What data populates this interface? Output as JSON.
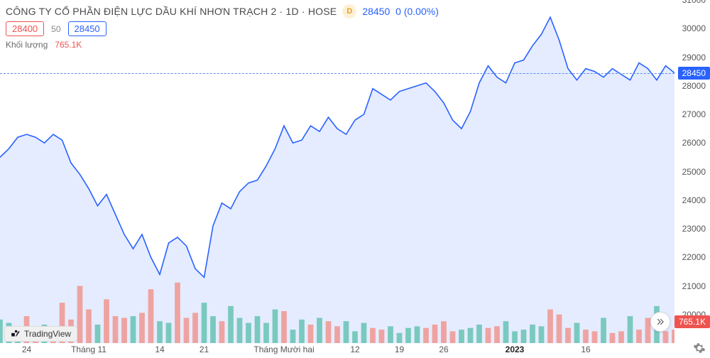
{
  "header": {
    "title": "CÔNG TY CỔ PHẦN ĐIỆN LỰC DẦU KHÍ NHƠN TRẠCH 2 · 1D · HOSE",
    "interval_badge": "D",
    "price": "28450",
    "change": "0 (0.00%)"
  },
  "row2": {
    "bid": "28400",
    "mid": "50",
    "ask": "28450"
  },
  "row3": {
    "label": "Khối lượng",
    "value": "765.1K"
  },
  "price_chart": {
    "type": "area",
    "ylim": [
      19000,
      31000
    ],
    "ytick_step": 1000,
    "current_price": 28450,
    "line_color": "#2962ff",
    "fill_color": "rgba(41,98,255,0.12)",
    "line_width": 1.6,
    "background": "#ffffff",
    "values": [
      25500,
      25800,
      26200,
      26300,
      26200,
      26000,
      26300,
      26100,
      25300,
      24900,
      24400,
      23800,
      24200,
      23500,
      22800,
      22300,
      22800,
      22000,
      21400,
      22500,
      22700,
      22400,
      21600,
      21300,
      23100,
      23900,
      23700,
      24300,
      24600,
      24700,
      25200,
      25800,
      26600,
      26000,
      26100,
      26600,
      26400,
      26900,
      26500,
      26300,
      26800,
      27000,
      27900,
      27700,
      27500,
      27800,
      27900,
      28000,
      28100,
      27800,
      27400,
      26800,
      26500,
      27100,
      28100,
      28700,
      28300,
      28100,
      28800,
      28900,
      29400,
      29800,
      30400,
      29600,
      28600,
      28200,
      28600,
      28500,
      28300,
      28600,
      28400,
      28200,
      28800,
      28600,
      28200,
      28700,
      28450
    ]
  },
  "volume_chart": {
    "type": "bar",
    "ymax": 3800,
    "tag_value": "765.1K",
    "tag_color": "#ef5350",
    "up_color": "#7ac9bf",
    "down_color": "#efa3a0",
    "bar_width": 0.62,
    "bars": [
      {
        "v": 1400,
        "d": 1
      },
      {
        "v": 1200,
        "d": 1
      },
      {
        "v": 800,
        "d": 1
      },
      {
        "v": 1600,
        "d": 0
      },
      {
        "v": 700,
        "d": 0
      },
      {
        "v": 1100,
        "d": 1
      },
      {
        "v": 900,
        "d": 0
      },
      {
        "v": 2400,
        "d": 0
      },
      {
        "v": 1400,
        "d": 0
      },
      {
        "v": 3400,
        "d": 0
      },
      {
        "v": 2000,
        "d": 0
      },
      {
        "v": 1100,
        "d": 1
      },
      {
        "v": 2600,
        "d": 0
      },
      {
        "v": 1600,
        "d": 0
      },
      {
        "v": 1500,
        "d": 0
      },
      {
        "v": 1600,
        "d": 1
      },
      {
        "v": 1800,
        "d": 0
      },
      {
        "v": 3200,
        "d": 0
      },
      {
        "v": 1300,
        "d": 1
      },
      {
        "v": 1200,
        "d": 1
      },
      {
        "v": 3600,
        "d": 0
      },
      {
        "v": 1500,
        "d": 0
      },
      {
        "v": 1800,
        "d": 0
      },
      {
        "v": 2400,
        "d": 1
      },
      {
        "v": 1600,
        "d": 1
      },
      {
        "v": 1300,
        "d": 0
      },
      {
        "v": 2200,
        "d": 1
      },
      {
        "v": 1500,
        "d": 1
      },
      {
        "v": 1200,
        "d": 1
      },
      {
        "v": 1600,
        "d": 1
      },
      {
        "v": 1200,
        "d": 1
      },
      {
        "v": 2000,
        "d": 1
      },
      {
        "v": 1900,
        "d": 0
      },
      {
        "v": 800,
        "d": 1
      },
      {
        "v": 1400,
        "d": 1
      },
      {
        "v": 1100,
        "d": 0
      },
      {
        "v": 1500,
        "d": 1
      },
      {
        "v": 1300,
        "d": 0
      },
      {
        "v": 1000,
        "d": 0
      },
      {
        "v": 1300,
        "d": 1
      },
      {
        "v": 700,
        "d": 1
      },
      {
        "v": 1200,
        "d": 1
      },
      {
        "v": 900,
        "d": 0
      },
      {
        "v": 800,
        "d": 0
      },
      {
        "v": 1000,
        "d": 1
      },
      {
        "v": 600,
        "d": 1
      },
      {
        "v": 900,
        "d": 1
      },
      {
        "v": 1000,
        "d": 1
      },
      {
        "v": 900,
        "d": 0
      },
      {
        "v": 1100,
        "d": 0
      },
      {
        "v": 1300,
        "d": 0
      },
      {
        "v": 700,
        "d": 0
      },
      {
        "v": 800,
        "d": 1
      },
      {
        "v": 900,
        "d": 1
      },
      {
        "v": 1100,
        "d": 1
      },
      {
        "v": 900,
        "d": 0
      },
      {
        "v": 1000,
        "d": 0
      },
      {
        "v": 1300,
        "d": 1
      },
      {
        "v": 700,
        "d": 1
      },
      {
        "v": 800,
        "d": 1
      },
      {
        "v": 1100,
        "d": 1
      },
      {
        "v": 1000,
        "d": 1
      },
      {
        "v": 2000,
        "d": 0
      },
      {
        "v": 1700,
        "d": 0
      },
      {
        "v": 900,
        "d": 0
      },
      {
        "v": 1200,
        "d": 1
      },
      {
        "v": 800,
        "d": 0
      },
      {
        "v": 700,
        "d": 0
      },
      {
        "v": 1500,
        "d": 1
      },
      {
        "v": 600,
        "d": 0
      },
      {
        "v": 700,
        "d": 0
      },
      {
        "v": 1600,
        "d": 1
      },
      {
        "v": 800,
        "d": 0
      },
      {
        "v": 1500,
        "d": 0
      },
      {
        "v": 2200,
        "d": 1
      },
      {
        "v": 700,
        "d": 0
      },
      {
        "v": 800,
        "d": 0
      }
    ]
  },
  "x_axis": {
    "ticks": [
      {
        "i": 3,
        "label": "24",
        "bold": false
      },
      {
        "i": 10,
        "label": "Tháng 11",
        "bold": false
      },
      {
        "i": 18,
        "label": "14",
        "bold": false
      },
      {
        "i": 23,
        "label": "21",
        "bold": false
      },
      {
        "i": 32,
        "label": "Tháng Mười hai",
        "bold": false
      },
      {
        "i": 40,
        "label": "12",
        "bold": false
      },
      {
        "i": 45,
        "label": "19",
        "bold": false
      },
      {
        "i": 50,
        "label": "26",
        "bold": false
      },
      {
        "i": 58,
        "label": "2023",
        "bold": true
      },
      {
        "i": 66,
        "label": "16",
        "bold": false
      }
    ]
  },
  "tv_badge": {
    "text": "TradingView"
  }
}
